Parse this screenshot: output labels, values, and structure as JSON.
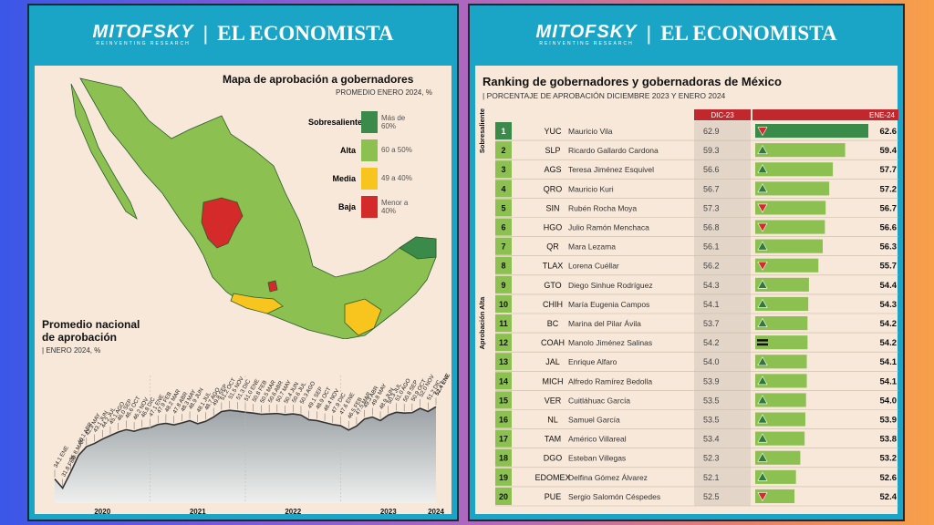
{
  "brand": {
    "mitofsky": "MITOFSKY",
    "mitofsky_sub": "REINVENTING RESEARCH",
    "economista": "EL ECONOMISTA"
  },
  "left": {
    "map_title": "Mapa de aprobación a gobernadores",
    "map_subtitle": "PROMEDIO ENERO 2024, %",
    "legend": [
      {
        "label": "Sobresaliente",
        "range": "Más de 60%",
        "color": "#3a8a4a"
      },
      {
        "label": "Alta",
        "range": "60 a 50%",
        "color": "#8cc152"
      },
      {
        "label": "Media",
        "range": "49 a 40%",
        "color": "#f7c51e"
      },
      {
        "label": "Baja",
        "range": "Menor a 40%",
        "color": "#d42a2a"
      }
    ],
    "trend_title_line1": "Promedio nacional",
    "trend_title_line2": "de aprobación",
    "trend_subtitle": "ENERO 2024, %"
  },
  "chart_data": [
    {
      "type": "area",
      "title": "Promedio nacional de aprobación",
      "subtitle": "ENERO 2024, %",
      "x_year_labels": [
        "2020",
        "2021",
        "2022",
        "2023",
        "2024"
      ],
      "labels": [
        "34.1 ENE",
        "31.8 FEB",
        "35.8 MAR",
        "40.1 ABR",
        "42.3 MAY",
        "43.1 JUN",
        "44.2 JUL",
        "45.1 AGO",
        "46.0 SEP",
        "46.6 OCT",
        "46.2 NOV",
        "46.8 DIC",
        "47.1 ENE",
        "47.9 FEB",
        "48.2 MAR",
        "47.8 ABR",
        "48.3 MAY",
        "48.9 JUN",
        "48.1 JUL",
        "48.7 AGO",
        "49.8 SEP",
        "51.2 OCT",
        "51.5 NOV",
        "51.3 DIC",
        "51.0 ENE",
        "50.8 FEB",
        "50.5 MAR",
        "50.6 ABR",
        "50.7 MAY",
        "50.4 JUN",
        "50.6 JUL",
        "50.3 AGO",
        "49.1 SEP",
        "48.9 OCT",
        "48.4 NOV",
        "47.9 DIC",
        "47.6 ENE",
        "46.5 FEB",
        "47.5 MAR",
        "49.3 ABR",
        "49.8 MAY",
        "48.9 JUN",
        "50.3 JUL",
        "51.0 AGO",
        "50.8 SEP",
        "50.9 OCT",
        "52.0 NOV",
        "51.2 DIC",
        "52.4 ENE"
      ],
      "values": [
        34.1,
        31.8,
        35.8,
        40.1,
        42.3,
        43.1,
        44.2,
        45.1,
        46.0,
        46.6,
        46.2,
        46.8,
        47.1,
        47.9,
        48.2,
        47.8,
        48.3,
        48.9,
        48.1,
        48.7,
        49.8,
        51.2,
        51.5,
        51.3,
        51.0,
        50.8,
        50.5,
        50.6,
        50.7,
        50.4,
        50.6,
        50.3,
        49.1,
        48.9,
        48.4,
        47.9,
        47.6,
        46.5,
        47.5,
        49.3,
        49.8,
        48.9,
        50.3,
        51.0,
        50.8,
        50.9,
        52.0,
        51.2,
        52.4
      ],
      "ylim": [
        28,
        58
      ]
    },
    {
      "type": "table",
      "title": "Ranking de gobernadores y gobernadoras de México",
      "subtitle": "PORCENTAJE DE APROBACIÓN DICIEMBRE 2023 Y ENERO 2024",
      "columns": [
        "DIC-23",
        "ENE-24"
      ],
      "groups": [
        {
          "label": "Sobresaliente",
          "from": 1,
          "to": 1
        },
        {
          "label": "Aprobación Alta",
          "from": 2,
          "to": 20
        }
      ],
      "rows": [
        {
          "rank": "1",
          "state": "YUC",
          "name": "Mauricio Vila",
          "dic": "62.9",
          "ene": "62.6",
          "trend": "down"
        },
        {
          "rank": "2",
          "state": "SLP",
          "name": "Ricardo Gallardo Cardona",
          "dic": "59.3",
          "ene": "59.4",
          "trend": "up"
        },
        {
          "rank": "3",
          "state": "AGS",
          "name": "Teresa Jiménez Esquivel",
          "dic": "56.6",
          "ene": "57.7",
          "trend": "up"
        },
        {
          "rank": "4",
          "state": "QRO",
          "name": "Mauricio Kuri",
          "dic": "56.7",
          "ene": "57.2",
          "trend": "up"
        },
        {
          "rank": "5",
          "state": "SIN",
          "name": "Rubén Rocha Moya",
          "dic": "57.3",
          "ene": "56.7",
          "trend": "down"
        },
        {
          "rank": "6",
          "state": "HGO",
          "name": "Julio Ramón Menchaca",
          "dic": "56.8",
          "ene": "56.6",
          "trend": "down"
        },
        {
          "rank": "7",
          "state": "QR",
          "name": "Mara Lezama",
          "dic": "56.1",
          "ene": "56.3",
          "trend": "up"
        },
        {
          "rank": "8",
          "state": "TLAX",
          "name": "Lorena Cuéllar",
          "dic": "56.2",
          "ene": "55.7",
          "trend": "down"
        },
        {
          "rank": "9",
          "state": "GTO",
          "name": "Diego Sinhue Rodríguez",
          "dic": "54.3",
          "ene": "54.4",
          "trend": "up"
        },
        {
          "rank": "10",
          "state": "CHIH",
          "name": "María Eugenia Campos",
          "dic": "54.1",
          "ene": "54.3",
          "trend": "up"
        },
        {
          "rank": "11",
          "state": "BC",
          "name": "Marina del Pilar Ávila",
          "dic": "53.7",
          "ene": "54.2",
          "trend": "up"
        },
        {
          "rank": "12",
          "state": "COAH",
          "name": "Manolo Jiménez Salinas",
          "dic": "54.2",
          "ene": "54.2",
          "trend": "equal"
        },
        {
          "rank": "13",
          "state": "JAL",
          "name": "Enrique Alfaro",
          "dic": "54.0",
          "ene": "54.1",
          "trend": "up"
        },
        {
          "rank": "14",
          "state": "MICH",
          "name": "Alfredo Ramírez Bedolla",
          "dic": "53.9",
          "ene": "54.1",
          "trend": "up"
        },
        {
          "rank": "15",
          "state": "VER",
          "name": "Cuitláhuac García",
          "dic": "53.5",
          "ene": "54.0",
          "trend": "up"
        },
        {
          "rank": "16",
          "state": "NL",
          "name": "Samuel García",
          "dic": "53.5",
          "ene": "53.9",
          "trend": "up"
        },
        {
          "rank": "17",
          "state": "TAM",
          "name": "Américo Villareal",
          "dic": "53.4",
          "ene": "53.8",
          "trend": "up"
        },
        {
          "rank": "18",
          "state": "DGO",
          "name": "Esteban Villegas",
          "dic": "52.3",
          "ene": "53.2",
          "trend": "up"
        },
        {
          "rank": "19",
          "state": "EDOMEX",
          "name": "Delfina Gómez Álvarez",
          "dic": "52.1",
          "ene": "52.6",
          "trend": "up"
        },
        {
          "rank": "20",
          "state": "PUE",
          "name": "Sergio Salomón Céspedes",
          "dic": "52.5",
          "ene": "52.4",
          "trend": "down"
        }
      ]
    }
  ]
}
